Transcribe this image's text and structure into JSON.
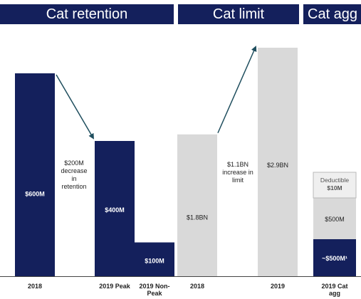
{
  "headers": {
    "retention": "Cat retention",
    "limit": "Cat limit",
    "agg": "Cat agg"
  },
  "colors": {
    "navy": "#14205c",
    "grey": "#d9d9d9",
    "deductible": "#efefef",
    "arrow": "#1f4e5e",
    "white": "#ffffff",
    "dark_text": "#222222",
    "ded_text": "#555555"
  },
  "chart_data": [
    {
      "type": "bar",
      "title": "Cat retention",
      "unit": "$M",
      "categories": [
        "2018",
        "2019 Peak",
        "2019 Non-\nPeak"
      ],
      "values": [
        600,
        400,
        100
      ],
      "value_labels": [
        "$600M",
        "$400M",
        "$100M"
      ],
      "annotation": {
        "text": [
          "$200M",
          "decrease",
          "in",
          "retention"
        ],
        "from": "2018",
        "to": "2019 Peak"
      },
      "color": "#14205c"
    },
    {
      "type": "bar",
      "title": "Cat limit",
      "unit": "$BN",
      "categories": [
        "2018",
        "2019"
      ],
      "values": [
        1.8,
        2.9
      ],
      "value_labels": [
        "$1.8BN",
        "$2.9BN"
      ],
      "annotation": {
        "text": [
          "$1.1BN",
          "increase in",
          "limit"
        ],
        "from": "2018",
        "to": "2019"
      },
      "color": "#d9d9d9"
    },
    {
      "type": "bar",
      "stacked": true,
      "title": "Cat agg",
      "unit": "$M",
      "categories": [
        "2019 Cat\nagg"
      ],
      "segments": [
        {
          "value_label": "~$500M¹",
          "value": 500,
          "color": "#14205c"
        },
        {
          "value_label": "$500M",
          "value": 500,
          "color": "#d9d9d9"
        },
        {
          "value_label": [
            "Deductible",
            "$10M"
          ],
          "value": 10,
          "color": "#efefef"
        }
      ]
    }
  ]
}
